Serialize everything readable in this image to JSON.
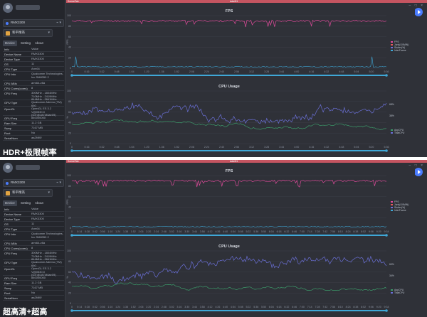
{
  "panels": [
    {
      "caption": "HDR+极限帧率",
      "sidebar": {
        "device": "RMX3300",
        "app": "和平精英",
        "tabs": [
          "Device",
          "Setting",
          "About"
        ],
        "info_header": {
          "key": "Info",
          "value": "Value"
        },
        "info": [
          {
            "key": "Device Name",
            "value": "RMX3300"
          },
          {
            "key": "Device Type",
            "value": "RMX3300"
          },
          {
            "key": "OS",
            "value": "11"
          },
          {
            "key": "CPU Type",
            "value": "Arm64"
          },
          {
            "key": "CPU Info",
            "value": "Qualcomm Technologies, Inc SM8350 2"
          },
          {
            "key": "CPU ABIs",
            "value": "arm64-v8a"
          },
          {
            "key": "CPU Cores(cores)",
            "value": "8"
          },
          {
            "key": "CPU Freq",
            "value": "300MHz - 1804MHz 710MHz - 2419MHz 844MHz - 2841MHz"
          },
          {
            "key": "GPU Type",
            "value": "Qualcomm Adreno (TM) 660"
          },
          {
            "key": "OpenGL",
            "value": "OpenGL ES 3.2 V@0530.0 (GIT@1874f4ae09)"
          },
          {
            "key": "GPU Freq",
            "value": "840000000"
          },
          {
            "key": "Ram Size",
            "value": "11.2 GB"
          },
          {
            "key": "Swap",
            "value": "7167 MB"
          },
          {
            "key": "Root",
            "value": "No"
          },
          {
            "key": "SerialNum",
            "value": "aa2f4f0f"
          }
        ]
      },
      "main": {
        "window_title": "SceneTab",
        "tab_label": "label01",
        "fps_chart": {
          "title": "FPS",
          "y_label": "FPS",
          "y_ticks": [
            "100",
            "80",
            "60",
            "40",
            "20",
            "0"
          ],
          "legend": [
            {
              "name": "FPS",
              "color": "#e04b9b"
            },
            {
              "name": "Jank(/10MIN)",
              "color": "#e05b5b"
            },
            {
              "name": "Stutter(%)",
              "color": "#6a6fd6"
            },
            {
              "name": "InterFrame",
              "color": "#3fa7d6"
            }
          ],
          "x_ticks": [
            "0",
            "0:16",
            "0:32",
            "0:48",
            "1:04",
            "1:20",
            "1:36",
            "1:52",
            "2:08",
            "2:24",
            "2:40",
            "2:56",
            "3:12",
            "3:28",
            "3:44",
            "4:00",
            "4:16",
            "4:32",
            "4:48",
            "5:04",
            "5:20",
            "5:36"
          ]
        },
        "cpu_chart": {
          "title": "CPU Usage",
          "y_label": "%",
          "y_ticks": [
            "100",
            "80",
            "60",
            "40",
            "20",
            "0"
          ],
          "legend": [
            {
              "name": "AppCPU",
              "color": "#3c9b6a"
            },
            {
              "name": "TotalCPU",
              "color": "#6a6fd6"
            }
          ],
          "end_labels": [
            "68%",
            "38%"
          ],
          "x_ticks": [
            "0",
            "0:16",
            "0:32",
            "0:48",
            "1:04",
            "1:20",
            "1:36",
            "1:52",
            "2:08",
            "2:24",
            "2:40",
            "2:56",
            "3:12",
            "3:28",
            "3:44",
            "4:00",
            "4:16",
            "4:32",
            "4:48",
            "5:04",
            "5:20",
            "5:36"
          ]
        }
      }
    },
    {
      "caption": "超高清+超高",
      "sidebar": {
        "device": "RMX3300",
        "app": "和平精英",
        "tabs": [
          "Device",
          "Setting",
          "About"
        ],
        "info_header": {
          "key": "Info",
          "value": "Value"
        },
        "info": [
          {
            "key": "Device Name",
            "value": "RMX3300"
          },
          {
            "key": "Device Type",
            "value": "RMX3300"
          },
          {
            "key": "OS",
            "value": "11"
          },
          {
            "key": "CPU Type",
            "value": "Arm64"
          },
          {
            "key": "CPU Info",
            "value": "Qualcomm Technologies, Inc SM8350 2"
          },
          {
            "key": "CPU ABIs",
            "value": "arm64-v8a"
          },
          {
            "key": "CPU Cores(cores)",
            "value": "8"
          },
          {
            "key": "CPU Freq",
            "value": "300MHz - 1804MHz 710MHz - 2419MHz 844MHz - 2841MHz"
          },
          {
            "key": "GPU Type",
            "value": "Qualcomm Adreno (TM) 660"
          },
          {
            "key": "OpenGL",
            "value": "OpenGL ES 3.2 V@0530.0 (GIT@1874f4ae09)"
          },
          {
            "key": "GPU Freq",
            "value": "840000000"
          },
          {
            "key": "Ram Size",
            "value": "11.2 GB"
          },
          {
            "key": "Swap",
            "value": "7167 MB"
          },
          {
            "key": "Root",
            "value": "No"
          },
          {
            "key": "SerialNum",
            "value": "aa2f4f0f"
          }
        ]
      },
      "main": {
        "window_title": "SceneTab",
        "tab_label": "label01",
        "fps_chart": {
          "title": "FPS",
          "y_label": "FPS",
          "y_ticks": [
            "100",
            "80",
            "60",
            "40",
            "20",
            "0"
          ],
          "legend": [
            {
              "name": "FPS",
              "color": "#e04b9b"
            },
            {
              "name": "Jank(/10MIN)",
              "color": "#e05b5b"
            },
            {
              "name": "Stutter(%)",
              "color": "#6a6fd6"
            },
            {
              "name": "InterFrame",
              "color": "#3fa7d6"
            }
          ],
          "x_ticks": [
            "0",
            "0:14",
            "0:28",
            "0:42",
            "0:56",
            "1:10",
            "1:24",
            "1:38",
            "1:52",
            "2:06",
            "2:20",
            "2:34",
            "2:48",
            "3:02",
            "3:16",
            "3:30",
            "3:44",
            "3:58",
            "4:12",
            "4:26",
            "4:40",
            "4:54",
            "5:08",
            "5:22",
            "5:36",
            "5:50",
            "6:04",
            "6:18",
            "6:32",
            "6:46",
            "7:00",
            "7:14",
            "7:28",
            "7:42",
            "7:56",
            "8:10",
            "8:24",
            "8:38",
            "8:52",
            "9:06",
            "9:20",
            "9:34"
          ]
        },
        "cpu_chart": {
          "title": "CPU Usage",
          "y_label": "%",
          "y_ticks": [
            "100",
            "80",
            "60",
            "40",
            "20",
            "0"
          ],
          "legend": [
            {
              "name": "AppCPU",
              "color": "#3c9b6a"
            },
            {
              "name": "TotalCPU",
              "color": "#6a6fd6"
            }
          ],
          "end_labels": [
            "60%",
            "34%"
          ],
          "x_ticks": [
            "0",
            "0:14",
            "0:28",
            "0:42",
            "0:56",
            "1:10",
            "1:24",
            "1:38",
            "1:52",
            "2:06",
            "2:20",
            "2:34",
            "2:48",
            "3:02",
            "3:16",
            "3:30",
            "3:44",
            "3:58",
            "4:12",
            "4:26",
            "4:40",
            "4:54",
            "5:08",
            "5:22",
            "5:36",
            "5:50",
            "6:04",
            "6:18",
            "6:32",
            "6:46",
            "7:00",
            "7:14",
            "7:28",
            "7:42",
            "7:56",
            "8:10",
            "8:24",
            "8:38",
            "8:52",
            "9:06",
            "9:20",
            "9:34"
          ]
        }
      }
    }
  ],
  "colors": {
    "panel_bg": "#2f3138",
    "sidebar_bg": "#24262c",
    "accent_bar": "#c55561",
    "fps_line": "#e04b9b",
    "cpu_total_line": "#6a6fd6",
    "cpu_app_line": "#3c9b6a",
    "scroll_bar": "#3fa7d6"
  }
}
